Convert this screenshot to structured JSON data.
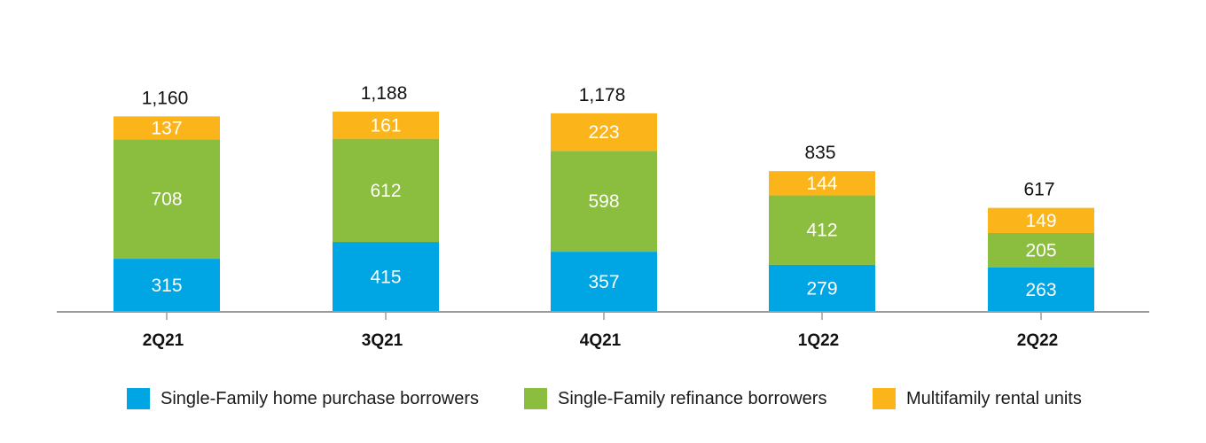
{
  "chart_data": {
    "type": "bar",
    "stacked": true,
    "categories": [
      "2Q21",
      "3Q21",
      "4Q21",
      "1Q22",
      "2Q22"
    ],
    "series": [
      {
        "name": "Single-Family home purchase borrowers",
        "color": "#00a5e3",
        "values": [
          315,
          415,
          357,
          279,
          263
        ]
      },
      {
        "name": "Single-Family refinance borrowers",
        "color": "#8bbd3f",
        "values": [
          708,
          612,
          598,
          412,
          205
        ]
      },
      {
        "name": "Multifamily rental units",
        "color": "#fbb51a",
        "values": [
          137,
          161,
          223,
          144,
          149
        ]
      }
    ],
    "totals": [
      "1,160",
      "1,188",
      "1,178",
      "835",
      "617"
    ],
    "ylim": [
      0,
      1188
    ],
    "grid": false,
    "legend_position": "bottom"
  }
}
